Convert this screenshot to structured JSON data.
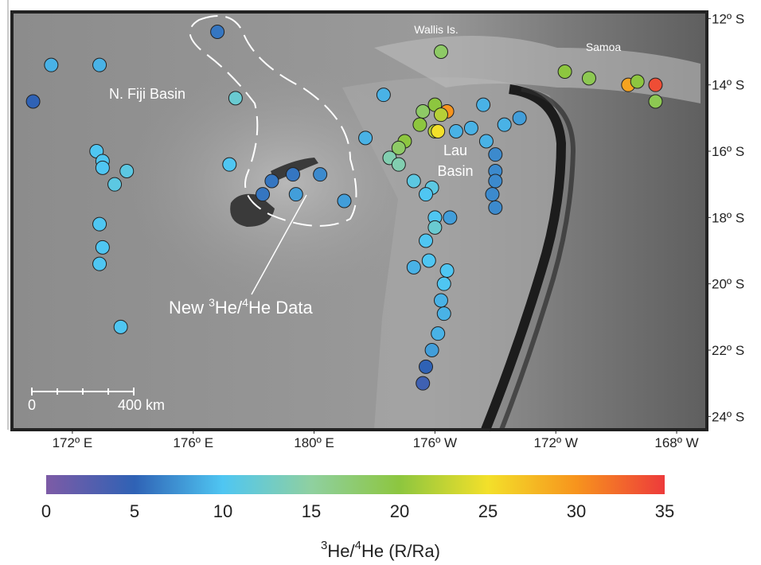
{
  "chart_data": {
    "type": "scatter",
    "labels": {
      "wallis": "Wallis Is.",
      "samoa": "Samoa",
      "fiji_basin": "N. Fiji Basin",
      "lau": [
        "Lau",
        "Basin"
      ]
    },
    "annotation": [
      "New ",
      "3",
      "He/",
      "4",
      "He Data"
    ],
    "scale_bar": [
      "0",
      "400 km"
    ],
    "colorbar_label": [
      "3",
      "He/",
      "4",
      "He (R/Ra)"
    ],
    "xlim": [
      170,
      193
    ],
    "ylim": [
      -24.4,
      -11.8
    ],
    "xticks": [
      {
        "value": 172,
        "label": "172º E"
      },
      {
        "value": 176,
        "label": "176º E"
      },
      {
        "value": 180,
        "label": "180º E"
      },
      {
        "value": 184,
        "label": "176º W"
      },
      {
        "value": 188,
        "label": "172º W"
      },
      {
        "value": 192,
        "label": "168º W"
      }
    ],
    "yticks": [
      {
        "value": -12,
        "label": "12º S"
      },
      {
        "value": -14,
        "label": "14º S"
      },
      {
        "value": -16,
        "label": "16º S"
      },
      {
        "value": -18,
        "label": "18º S"
      },
      {
        "value": -20,
        "label": "20º S"
      },
      {
        "value": -22,
        "label": "22º S"
      },
      {
        "value": -24,
        "label": "24º S"
      }
    ],
    "clim": [
      0,
      35
    ],
    "cticks": [
      0,
      5,
      10,
      15,
      20,
      25,
      30,
      35
    ],
    "colorscale": [
      {
        "value": 0,
        "color": "#7d5ba6"
      },
      {
        "value": 5,
        "color": "#2f62b5"
      },
      {
        "value": 10,
        "color": "#4fc6f2"
      },
      {
        "value": 15,
        "color": "#8fd0a0"
      },
      {
        "value": 20,
        "color": "#8dc63f"
      },
      {
        "value": 25,
        "color": "#f3e02a"
      },
      {
        "value": 30,
        "color": "#f7941d"
      },
      {
        "value": 35,
        "color": "#ed3b3b"
      }
    ],
    "x": [
      176.8,
      171.3,
      172.9,
      170.7,
      177.4,
      182.3,
      172.8,
      173.0,
      173.0,
      173.8,
      173.4,
      172.9,
      173.0,
      172.9,
      173.6,
      177.2,
      179.3,
      180.2,
      178.6,
      179.4,
      178.3,
      181.0,
      181.7,
      183.6,
      184.0,
      184.4,
      184.2,
      183.5,
      184.0,
      184.1,
      183.0,
      182.8,
      182.5,
      182.8,
      185.6,
      186.8,
      186.3,
      185.2,
      184.7,
      185.7,
      186.0,
      186.0,
      186.0,
      185.9,
      186.0,
      183.3,
      183.9,
      183.7,
      184.0,
      184.0,
      184.5,
      183.7,
      183.8,
      183.3,
      184.4,
      184.3,
      184.2,
      184.3,
      184.1,
      183.9,
      183.7,
      183.6,
      184.2,
      188.3,
      189.1,
      190.4,
      190.7,
      191.3,
      191.3
    ],
    "y": [
      -12.4,
      -13.4,
      -13.4,
      -14.5,
      -14.4,
      -14.3,
      -16.0,
      -16.3,
      -16.5,
      -16.6,
      -17.0,
      -18.2,
      -18.9,
      -19.4,
      -21.3,
      -16.4,
      -16.7,
      -16.7,
      -16.9,
      -17.3,
      -17.3,
      -17.5,
      -15.6,
      -14.8,
      -14.6,
      -14.8,
      -14.9,
      -15.2,
      -15.4,
      -15.4,
      -15.7,
      -15.9,
      -16.2,
      -16.4,
      -14.6,
      -15.0,
      -15.2,
      -15.3,
      -15.4,
      -15.7,
      -16.1,
      -16.6,
      -16.9,
      -17.3,
      -17.7,
      -16.9,
      -17.1,
      -17.3,
      -18.0,
      -18.3,
      -18.0,
      -18.7,
      -19.3,
      -19.5,
      -19.6,
      -20.0,
      -20.5,
      -20.9,
      -21.5,
      -22.0,
      -22.5,
      -23.0,
      -13.0,
      -13.6,
      -13.8,
      -14.0,
      -13.9,
      -14.0,
      -14.5
    ],
    "values": [
      6,
      9,
      9,
      5,
      12,
      9,
      10,
      10,
      10,
      11,
      11,
      10,
      10,
      10,
      10,
      10,
      6,
      7,
      6,
      8,
      6,
      8,
      9,
      18,
      20,
      30,
      22,
      20,
      22,
      25,
      20,
      18,
      14,
      14,
      9,
      8,
      9,
      9,
      9,
      9,
      7,
      7,
      7,
      7,
      7,
      11,
      11,
      10,
      10,
      12,
      8,
      10,
      10,
      9,
      10,
      10,
      9,
      9,
      9,
      8,
      5,
      4,
      18,
      20,
      19,
      29,
      20,
      34,
      19
    ]
  }
}
